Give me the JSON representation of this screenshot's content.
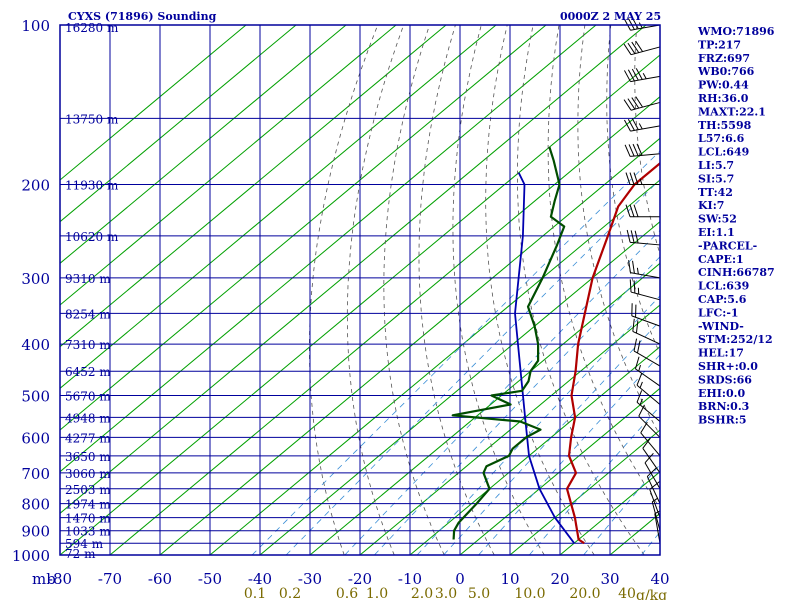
{
  "header": {
    "station_title": "CYXS (71896) Sounding",
    "valid_time": "0000Z  2 MAY 25"
  },
  "indices": [
    "WMO:71896",
    "TP:217",
    "FRZ:697",
    "WB0:766",
    "PW:0.44",
    "RH:36.0",
    "MAXT:22.1",
    "TH:5598",
    "L57:6.6",
    "LCL:649",
    "LI:5.7",
    "SI:5.7",
    "TT:42",
    "KI:7",
    "SW:52",
    "EI:1.1",
    "-PARCEL-",
    "CAPE:1",
    "CINH:66787",
    "LCL:639",
    "CAP:5.6",
    "LFC:-1",
    "-WIND-",
    "STM:252/12",
    "HEL:17",
    "SHR+:0.0",
    "SRDS:66",
    "EHI:0.0",
    "BRN:0.3",
    "BSHR:5"
  ],
  "colors": {
    "frame": "#00009c",
    "isobar": "#00009c",
    "isotherm": "#00a000",
    "dry_adiabat": "#555555",
    "mixing_ratio": "#3a8ed6",
    "temperature": "#b00000",
    "dewpoint": "#004d00",
    "parcel": "#0000b0",
    "wind": "#000000"
  },
  "chart_data": {
    "type": "line",
    "pressure_unit_label": "mb",
    "mixing_ratio_unit_label": "g/kg",
    "pressure_levels": [
      100,
      200,
      300,
      400,
      500,
      600,
      700,
      800,
      900,
      1000
    ],
    "temperature_ticks": [
      -80,
      -70,
      -60,
      -50,
      -40,
      -30,
      -20,
      -10,
      0,
      10,
      20,
      30,
      40
    ],
    "mixing_ratio_ticks": [
      "0.1",
      "0.2",
      "0.6",
      "1.0",
      "2.0",
      "3.0",
      "5.0",
      "10.0",
      "20.0",
      "40"
    ],
    "height_labels": [
      {
        "p": 100,
        "label": "16280 m"
      },
      {
        "p": 150,
        "label": "13750 m"
      },
      {
        "p": 200,
        "label": "11930 m"
      },
      {
        "p": 250,
        "label": "10620 m"
      },
      {
        "p": 300,
        "label": "9310 m"
      },
      {
        "p": 350,
        "label": "8254 m"
      },
      {
        "p": 400,
        "label": "7310 m"
      },
      {
        "p": 450,
        "label": "6452 m"
      },
      {
        "p": 500,
        "label": "5670 m"
      },
      {
        "p": 550,
        "label": "4948 m"
      },
      {
        "p": 600,
        "label": "4277 m"
      },
      {
        "p": 650,
        "label": "3650 m"
      },
      {
        "p": 700,
        "label": "3060 m"
      },
      {
        "p": 750,
        "label": "2503 m"
      },
      {
        "p": 800,
        "label": "1974 m"
      },
      {
        "p": 850,
        "label": "1470 m"
      },
      {
        "p": 900,
        "label": "1033 m"
      },
      {
        "p": 950,
        "label": "594 m"
      },
      {
        "p": 1000,
        "label": "72 m"
      }
    ],
    "temperature_profile": [
      {
        "p": 950,
        "t": 22.0
      },
      {
        "p": 935,
        "t": 20.0
      },
      {
        "p": 850,
        "t": 14.0
      },
      {
        "p": 750,
        "t": 5.5
      },
      {
        "p": 700,
        "t": 3.5
      },
      {
        "p": 650,
        "t": -2.0
      },
      {
        "p": 600,
        "t": -6.0
      },
      {
        "p": 550,
        "t": -10.0
      },
      {
        "p": 500,
        "t": -16.0
      },
      {
        "p": 450,
        "t": -21.0
      },
      {
        "p": 400,
        "t": -27.0
      },
      {
        "p": 300,
        "t": -40.0
      },
      {
        "p": 250,
        "t": -47.0
      },
      {
        "p": 220,
        "t": -52.0
      },
      {
        "p": 200,
        "t": -54.0
      },
      {
        "p": 180,
        "t": -54.0
      },
      {
        "p": 160,
        "t": -52.0
      },
      {
        "p": 140,
        "t": -56.0
      },
      {
        "p": 120,
        "t": -60.0
      },
      {
        "p": 100,
        "t": -63.0
      }
    ],
    "dewpoint_profile": [
      {
        "p": 935,
        "t": -5.0
      },
      {
        "p": 900,
        "t": -7.0
      },
      {
        "p": 870,
        "t": -8.0
      },
      {
        "p": 800,
        "t": -9.0
      },
      {
        "p": 750,
        "t": -10.0
      },
      {
        "p": 700,
        "t": -15.0
      },
      {
        "p": 680,
        "t": -16.0
      },
      {
        "p": 650,
        "t": -14.0
      },
      {
        "p": 630,
        "t": -15.0
      },
      {
        "p": 600,
        "t": -15.0
      },
      {
        "p": 580,
        "t": -14.0
      },
      {
        "p": 560,
        "t": -20.0
      },
      {
        "p": 545,
        "t": -35.0
      },
      {
        "p": 520,
        "t": -26.0
      },
      {
        "p": 500,
        "t": -32.0
      },
      {
        "p": 490,
        "t": -27.0
      },
      {
        "p": 470,
        "t": -28.0
      },
      {
        "p": 450,
        "t": -30.0
      },
      {
        "p": 430,
        "t": -31.0
      },
      {
        "p": 400,
        "t": -35.0
      },
      {
        "p": 370,
        "t": -40.0
      },
      {
        "p": 340,
        "t": -46.0
      },
      {
        "p": 300,
        "t": -50.0
      },
      {
        "p": 260,
        "t": -55.0
      },
      {
        "p": 240,
        "t": -58.0
      },
      {
        "p": 230,
        "t": -63.0
      },
      {
        "p": 215,
        "t": -66.0
      },
      {
        "p": 200,
        "t": -69.0
      },
      {
        "p": 180,
        "t": -76.0
      },
      {
        "p": 170,
        "t": -80.0
      }
    ],
    "parcel_profile": [
      {
        "p": 950,
        "t": 20.0
      },
      {
        "p": 850,
        "t": 10.0
      },
      {
        "p": 750,
        "t": 0.0
      },
      {
        "p": 650,
        "t": -10.0
      },
      {
        "p": 550,
        "t": -20.0
      },
      {
        "p": 450,
        "t": -32.0
      },
      {
        "p": 350,
        "t": -47.0
      },
      {
        "p": 250,
        "t": -64.0
      },
      {
        "p": 200,
        "t": -76.0
      },
      {
        "p": 190,
        "t": -80.0
      }
    ],
    "wind_barbs": [
      {
        "p": 100,
        "dir": 260,
        "spd": 35
      },
      {
        "p": 110,
        "dir": 255,
        "spd": 40
      },
      {
        "p": 125,
        "dir": 260,
        "spd": 45
      },
      {
        "p": 140,
        "dir": 255,
        "spd": 40
      },
      {
        "p": 155,
        "dir": 260,
        "spd": 35
      },
      {
        "p": 175,
        "dir": 265,
        "spd": 40
      },
      {
        "p": 200,
        "dir": 270,
        "spd": 35
      },
      {
        "p": 230,
        "dir": 270,
        "spd": 30
      },
      {
        "p": 260,
        "dir": 275,
        "spd": 30
      },
      {
        "p": 300,
        "dir": 280,
        "spd": 25
      },
      {
        "p": 330,
        "dir": 285,
        "spd": 25
      },
      {
        "p": 370,
        "dir": 290,
        "spd": 20
      },
      {
        "p": 400,
        "dir": 295,
        "spd": 20
      },
      {
        "p": 440,
        "dir": 300,
        "spd": 20
      },
      {
        "p": 480,
        "dir": 305,
        "spd": 15
      },
      {
        "p": 520,
        "dir": 310,
        "spd": 15
      },
      {
        "p": 560,
        "dir": 310,
        "spd": 15
      },
      {
        "p": 600,
        "dir": 315,
        "spd": 10
      },
      {
        "p": 650,
        "dir": 320,
        "spd": 10
      },
      {
        "p": 700,
        "dir": 325,
        "spd": 10
      },
      {
        "p": 750,
        "dir": 330,
        "spd": 10
      },
      {
        "p": 800,
        "dir": 335,
        "spd": 10
      },
      {
        "p": 850,
        "dir": 340,
        "spd": 10
      },
      {
        "p": 900,
        "dir": 345,
        "spd": 5
      },
      {
        "p": 950,
        "dir": 350,
        "spd": 5
      }
    ]
  }
}
